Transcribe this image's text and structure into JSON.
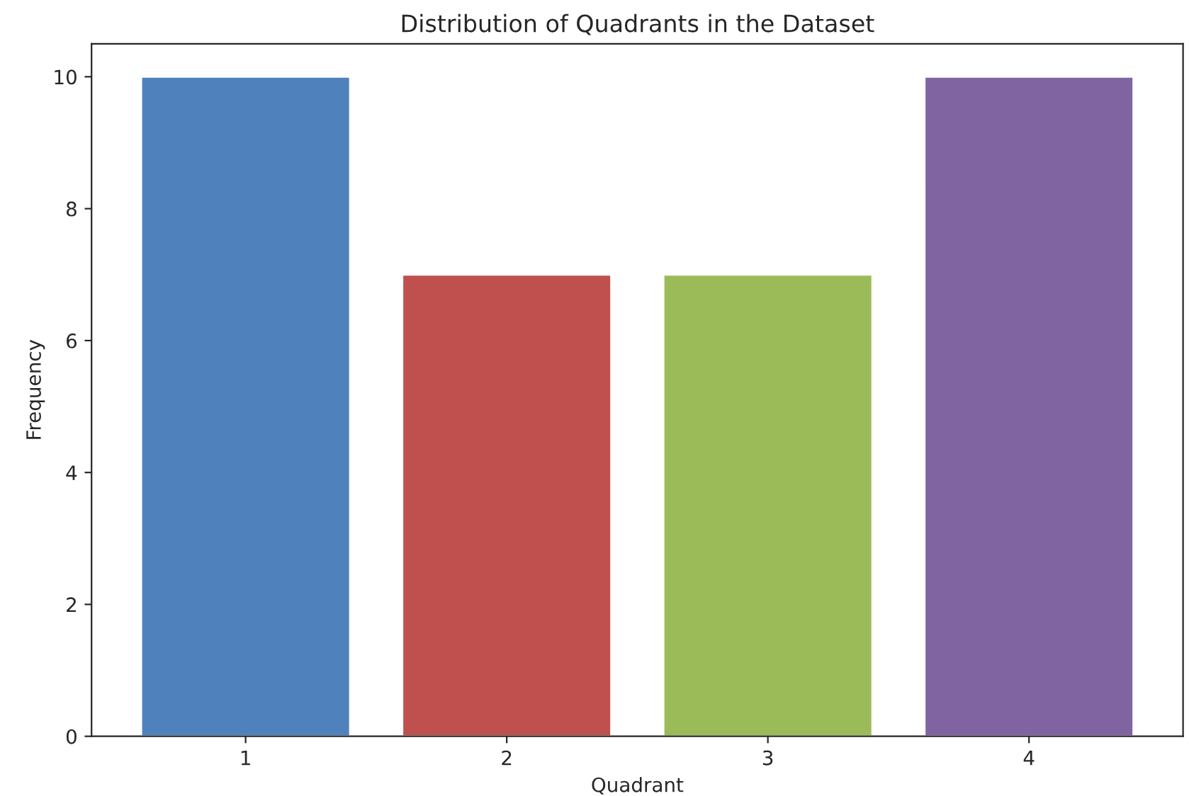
{
  "chart_data": {
    "type": "bar",
    "title": "Distribution of Quadrants in the Dataset",
    "xlabel": "Quadrant",
    "ylabel": "Frequency",
    "categories": [
      "1",
      "2",
      "3",
      "4"
    ],
    "values": [
      10,
      7,
      7,
      10
    ],
    "colors": [
      "#4f81bd",
      "#c0504d",
      "#9bbb59",
      "#8064a2"
    ],
    "ylim": [
      0,
      10.5
    ],
    "yticks": [
      0,
      2,
      4,
      6,
      8,
      10
    ],
    "grid": false,
    "legend": false
  }
}
